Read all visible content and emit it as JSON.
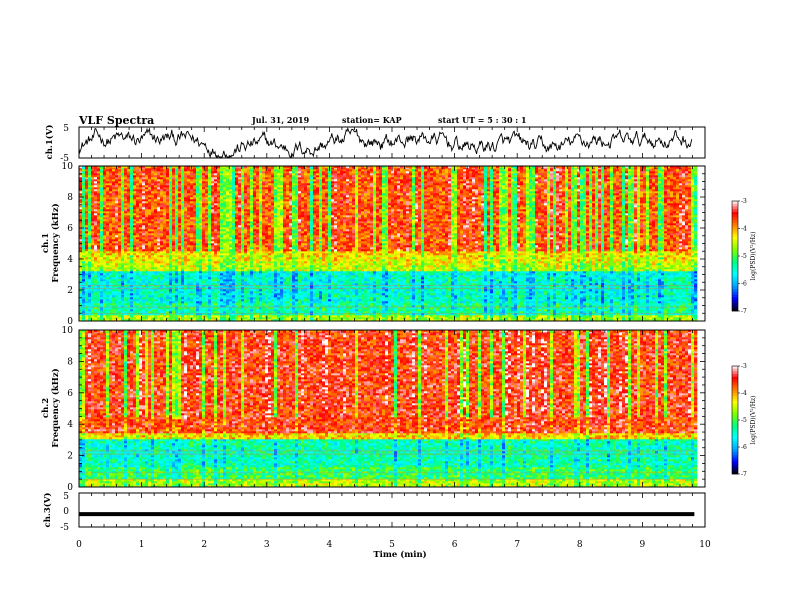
{
  "header": {
    "title": "VLF Spectra",
    "date": "Jul. 31, 2019",
    "station": "station= KAP",
    "start": "start  UT =   5  : 30 : 1"
  },
  "colors": {
    "colormap": [
      "#000000",
      "#0000ff",
      "#00a0ff",
      "#00ffff",
      "#00ff80",
      "#80ff00",
      "#ffff00",
      "#ff8000",
      "#ff0000",
      "#ffffff"
    ]
  },
  "chart_data": [
    {
      "type": "line",
      "name": "waveform-ch1",
      "ylabel": "ch.1(V)",
      "ylim": [
        -5,
        5
      ],
      "yticks": [
        5,
        -5
      ],
      "xlim": [
        0,
        10
      ],
      "description_values": "broadband waveform oscillating roughly between -4 and +3 V across the full record"
    },
    {
      "type": "heatmap",
      "name": "spectrogram-ch1",
      "ylabel": "ch.1\nFrequency (kHz)",
      "ylim": [
        0,
        10
      ],
      "yticks": [
        0,
        2,
        4,
        6,
        8,
        10
      ],
      "xlim": [
        0,
        9.83
      ],
      "colorbar": {
        "label": "log(PSD)(V^2/Hz)",
        "range": [
          -7,
          -3
        ],
        "ticks": [
          -3,
          -4,
          -5,
          -6,
          -7
        ]
      },
      "bands": [
        {
          "f_low": 0.0,
          "f_high": 0.4,
          "level": "mixed (-6 to -4)"
        },
        {
          "f_low": 0.4,
          "f_high": 3.2,
          "level": "low (-6 to -5), blue/cyan band near 1.5-3 kHz"
        },
        {
          "f_low": 3.2,
          "f_high": 4.5,
          "level": "mid (-5 to -4)"
        },
        {
          "f_low": 4.5,
          "f_high": 10.0,
          "level": "high (-4 to -3), red/yellow"
        }
      ]
    },
    {
      "type": "heatmap",
      "name": "spectrogram-ch2",
      "ylabel": "ch.2\nFrequency (kHz)",
      "ylim": [
        0,
        10
      ],
      "yticks": [
        0,
        2,
        4,
        6,
        8,
        10
      ],
      "xlim": [
        0,
        9.83
      ],
      "colorbar": {
        "label": "log(PSD)(V^2/Hz)",
        "range": [
          -7,
          -3
        ],
        "ticks": [
          -3,
          -4,
          -5,
          -6,
          -7
        ]
      },
      "bands": [
        {
          "f_low": 0.0,
          "f_high": 0.5,
          "level": "mixed (-6 to -4)"
        },
        {
          "f_low": 0.5,
          "f_high": 3.0,
          "level": "low (-6 to -5), blue/cyan band near 1.5-3 kHz"
        },
        {
          "f_low": 3.0,
          "f_high": 10.0,
          "level": "high (-4 to -3), red/yellow"
        }
      ]
    },
    {
      "type": "line",
      "name": "waveform-ch3",
      "ylabel": "ch.3(V)",
      "ylim": [
        -5,
        5
      ],
      "yticks": [
        5,
        0,
        -5
      ],
      "xlim": [
        0,
        10
      ],
      "values": {
        "x": [
          0,
          9.83
        ],
        "y": [
          -1.2,
          -1.2
        ]
      }
    }
  ],
  "xaxis": {
    "label": "Time (min)",
    "ticks": [
      0,
      1,
      2,
      3,
      4,
      5,
      6,
      7,
      8,
      9,
      10
    ]
  },
  "cb_labels": [
    "-3",
    "-4",
    "-5",
    "-6",
    "-7"
  ],
  "cb_text": "log(PSD)(V",
  "cb_text2": "/Hz)"
}
